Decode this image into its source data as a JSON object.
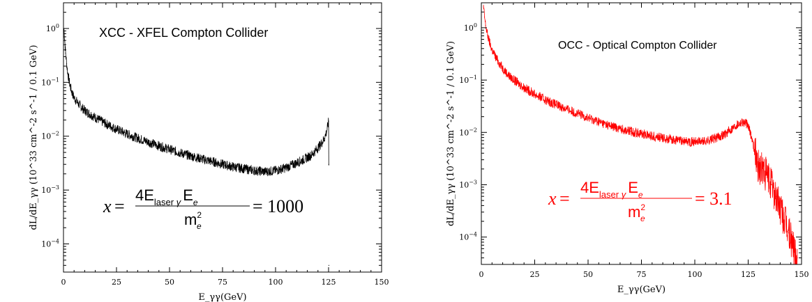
{
  "chart_data": [
    {
      "type": "line",
      "title": "XCC  -  XFEL Compton Collider",
      "xlabel": "E_γγ(GeV)",
      "ylabel": "dL/dE_γγ (10^33 cm^-2 s^-1 / 0.1 GeV)",
      "xlim": [
        0,
        150
      ],
      "ylim": [
        3e-05,
        3
      ],
      "yscale": "log",
      "xticks": [
        0,
        25,
        50,
        75,
        100,
        125,
        150
      ],
      "yticks": [
        {
          "value": 1,
          "base": "10",
          "exp": "0"
        },
        {
          "value": 0.1,
          "base": "10",
          "exp": "−1"
        },
        {
          "value": 0.01,
          "base": "10",
          "exp": "−2"
        },
        {
          "value": 0.001,
          "base": "10",
          "exp": "−3"
        },
        {
          "value": 0.0001,
          "base": "10",
          "exp": "−4"
        }
      ],
      "grid": false,
      "series": [
        {
          "color": "#000000",
          "x": [
            0.2,
            0.6,
            1,
            1.5,
            2,
            3,
            4,
            5,
            7,
            10,
            13,
            16,
            20,
            25,
            30,
            35,
            40,
            45,
            50,
            55,
            60,
            65,
            70,
            75,
            80,
            85,
            90,
            95,
            100,
            105,
            110,
            114,
            117,
            119,
            121,
            123,
            124,
            124.7,
            125,
            125.1,
            125.15
          ],
          "values": [
            1.0,
            0.6,
            0.35,
            0.22,
            0.15,
            0.09,
            0.065,
            0.052,
            0.04,
            0.03,
            0.025,
            0.021,
            0.017,
            0.0135,
            0.011,
            0.0092,
            0.0078,
            0.0066,
            0.0057,
            0.0049,
            0.0043,
            0.0038,
            0.0034,
            0.003,
            0.0027,
            0.0025,
            0.0023,
            0.0022,
            0.0023,
            0.0026,
            0.0032,
            0.0038,
            0.0045,
            0.0055,
            0.0068,
            0.009,
            0.012,
            0.016,
            0.019,
            0.003,
            4e-05
          ]
        }
      ],
      "formula": {
        "x": "x",
        "numerator": "4E",
        "laser": "laser",
        "gamma": "γ",
        "e_sym": "E",
        "sub_e": "e",
        "denom": "m",
        "sup2": "2",
        "rhs": "= 1000",
        "color": "#000000"
      }
    },
    {
      "type": "line",
      "title": "OCC  -  Optical Compton Collider",
      "xlabel": "E_γγ(GeV)",
      "ylabel": "dL/dE_γγ (10^33 cm^-2 s^-1 / 0.1 GeV)",
      "xlim": [
        0,
        150
      ],
      "ylim": [
        3e-05,
        3
      ],
      "yscale": "log",
      "xticks": [
        0,
        25,
        50,
        75,
        100,
        125,
        150
      ],
      "yticks": [
        {
          "value": 1,
          "base": "10",
          "exp": "0"
        },
        {
          "value": 0.1,
          "base": "10",
          "exp": "−1"
        },
        {
          "value": 0.01,
          "base": "10",
          "exp": "−2"
        },
        {
          "value": 0.001,
          "base": "10",
          "exp": "−3"
        },
        {
          "value": 0.0001,
          "base": "10",
          "exp": "−4"
        }
      ],
      "grid": false,
      "series": [
        {
          "color": "#ff0000",
          "x": [
            1,
            1.5,
            2,
            3,
            4,
            5,
            7,
            10,
            13,
            16,
            20,
            25,
            30,
            35,
            40,
            45,
            50,
            55,
            60,
            65,
            70,
            75,
            80,
            85,
            90,
            95,
            100,
            105,
            110,
            115,
            118,
            120,
            122,
            124,
            125,
            126,
            127,
            128,
            129,
            130,
            132,
            134,
            136,
            138,
            140,
            142,
            144,
            146,
            148
          ],
          "values": [
            2.5,
            1.6,
            1.1,
            0.7,
            0.5,
            0.38,
            0.26,
            0.17,
            0.12,
            0.095,
            0.072,
            0.054,
            0.042,
            0.034,
            0.028,
            0.023,
            0.019,
            0.016,
            0.0135,
            0.0118,
            0.0105,
            0.0095,
            0.0086,
            0.0078,
            0.0072,
            0.0068,
            0.0066,
            0.0068,
            0.0078,
            0.0098,
            0.0125,
            0.0145,
            0.016,
            0.015,
            0.013,
            0.01,
            0.007,
            0.0045,
            0.003,
            0.0022,
            0.0018,
            0.0014,
            0.001,
            0.0006,
            0.00035,
            0.0002,
            0.00012,
            7e-05,
            4e-05
          ]
        }
      ],
      "formula": {
        "x": "x",
        "numerator": "4E",
        "laser": "laser",
        "gamma": "γ",
        "e_sym": "E",
        "sub_e": "e",
        "denom": "m",
        "sup2": "2",
        "rhs": "= 3.1",
        "color": "#ff0000"
      }
    }
  ]
}
